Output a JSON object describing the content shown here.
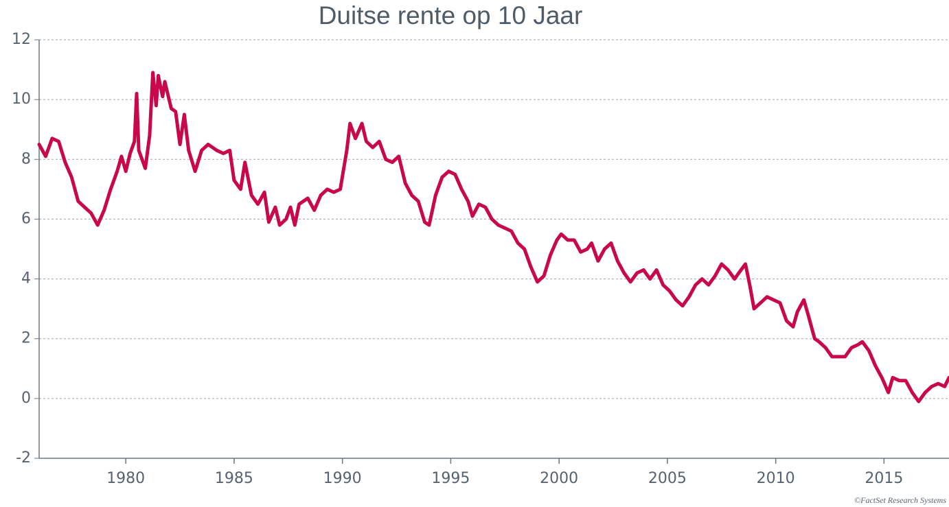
{
  "chart_data": {
    "type": "line",
    "title": "Duitse rente op 10 Jaar",
    "source": "©FactSet Research Systems",
    "xlim": [
      1976,
      2018
    ],
    "xticks": [
      1980,
      1985,
      1990,
      1995,
      2000,
      2005,
      2010,
      2015
    ],
    "ylim": [
      -2,
      12
    ],
    "yticks": [
      -2,
      0,
      2,
      4,
      6,
      8,
      10,
      12
    ],
    "grid": true,
    "series": [
      {
        "color": "#c8084a",
        "x": [
          1976.0,
          1976.3,
          1976.6,
          1976.9,
          1977.2,
          1977.5,
          1977.8,
          1978.1,
          1978.4,
          1978.7,
          1979.0,
          1979.3,
          1979.6,
          1979.8,
          1980.0,
          1980.2,
          1980.4,
          1980.5,
          1980.6,
          1980.9,
          1981.1,
          1981.25,
          1981.4,
          1981.5,
          1981.7,
          1981.8,
          1982.1,
          1982.3,
          1982.5,
          1982.7,
          1982.9,
          1983.2,
          1983.5,
          1983.8,
          1984.2,
          1984.5,
          1984.8,
          1985.0,
          1985.3,
          1985.5,
          1985.8,
          1986.1,
          1986.4,
          1986.6,
          1986.9,
          1987.1,
          1987.4,
          1987.6,
          1987.8,
          1988.0,
          1988.4,
          1988.7,
          1989.0,
          1989.3,
          1989.6,
          1989.9,
          1990.2,
          1990.35,
          1990.6,
          1990.9,
          1991.1,
          1991.4,
          1991.7,
          1992.0,
          1992.3,
          1992.6,
          1992.9,
          1993.2,
          1993.5,
          1993.8,
          1994.0,
          1994.3,
          1994.6,
          1994.9,
          1995.2,
          1995.5,
          1995.8,
          1996.0,
          1996.3,
          1996.6,
          1996.9,
          1997.2,
          1997.5,
          1997.8,
          1998.1,
          1998.4,
          1998.7,
          1999.0,
          1999.3,
          1999.6,
          1999.9,
          2000.1,
          2000.4,
          2000.7,
          2001.0,
          2001.3,
          2001.5,
          2001.8,
          2002.1,
          2002.4,
          2002.7,
          2003.0,
          2003.3,
          2003.6,
          2003.9,
          2004.2,
          2004.5,
          2004.8,
          2005.1,
          2005.4,
          2005.7,
          2006.0,
          2006.3,
          2006.6,
          2006.9,
          2007.2,
          2007.5,
          2007.8,
          2008.1,
          2008.4,
          2008.6,
          2008.8,
          2009.0,
          2009.3,
          2009.6,
          2009.9,
          2010.2,
          2010.5,
          2010.8,
          2011.0,
          2011.3,
          2011.5,
          2011.8,
          2012.0,
          2012.3,
          2012.6,
          2012.9,
          2013.2,
          2013.5,
          2013.8,
          2014.0,
          2014.3,
          2014.6,
          2014.9,
          2015.2,
          2015.4,
          2015.7,
          2016.0,
          2016.3,
          2016.6,
          2016.9,
          2017.2,
          2017.5,
          2017.8,
          2018.0
        ],
        "values": [
          8.5,
          8.1,
          8.7,
          8.6,
          7.9,
          7.4,
          6.6,
          6.4,
          6.2,
          5.8,
          6.3,
          7.0,
          7.6,
          8.1,
          7.6,
          8.2,
          8.6,
          10.2,
          8.3,
          7.7,
          8.8,
          10.9,
          9.8,
          10.8,
          10.1,
          10.6,
          9.7,
          9.6,
          8.5,
          9.5,
          8.3,
          7.6,
          8.3,
          8.5,
          8.3,
          8.2,
          8.3,
          7.3,
          7.0,
          7.9,
          6.8,
          6.5,
          6.9,
          5.9,
          6.4,
          5.8,
          6.0,
          6.4,
          5.8,
          6.5,
          6.7,
          6.3,
          6.8,
          7.0,
          6.9,
          7.0,
          8.3,
          9.2,
          8.7,
          9.2,
          8.6,
          8.4,
          8.6,
          8.0,
          7.9,
          8.1,
          7.2,
          6.8,
          6.6,
          5.9,
          5.8,
          6.8,
          7.4,
          7.6,
          7.5,
          7.0,
          6.6,
          6.1,
          6.5,
          6.4,
          6.0,
          5.8,
          5.7,
          5.6,
          5.2,
          5.0,
          4.4,
          3.9,
          4.1,
          4.8,
          5.3,
          5.5,
          5.3,
          5.3,
          4.9,
          5.0,
          5.2,
          4.6,
          5.0,
          5.2,
          4.6,
          4.2,
          3.9,
          4.2,
          4.3,
          4.0,
          4.3,
          3.8,
          3.6,
          3.3,
          3.1,
          3.4,
          3.8,
          4.0,
          3.8,
          4.1,
          4.5,
          4.3,
          4.0,
          4.3,
          4.5,
          3.8,
          3.0,
          3.2,
          3.4,
          3.3,
          3.2,
          2.6,
          2.4,
          2.9,
          3.3,
          2.8,
          2.0,
          1.9,
          1.7,
          1.4,
          1.4,
          1.4,
          1.7,
          1.8,
          1.9,
          1.6,
          1.1,
          0.7,
          0.2,
          0.7,
          0.6,
          0.6,
          0.2,
          -0.1,
          0.2,
          0.4,
          0.5,
          0.4,
          0.7
        ]
      }
    ]
  }
}
